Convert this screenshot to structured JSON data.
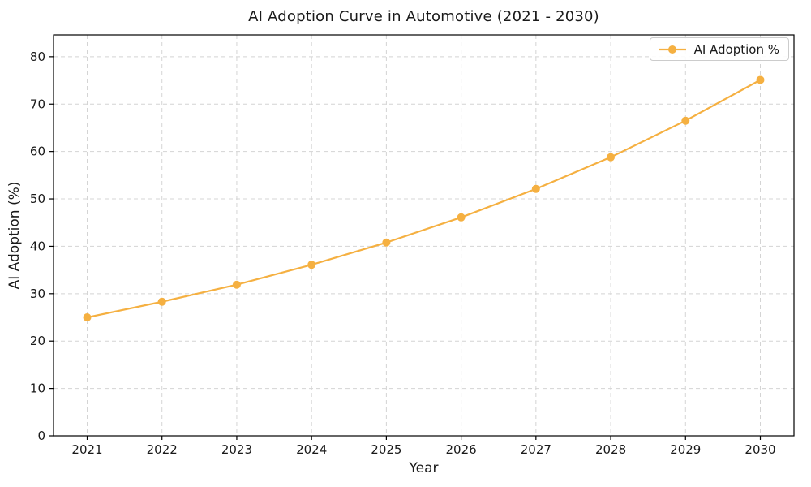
{
  "chart_data": {
    "type": "line",
    "title": "AI Adoption Curve in Automotive (2021 - 2030)",
    "xlabel": "Year",
    "ylabel": "AI Adoption (%)",
    "x": [
      2021,
      2022,
      2023,
      2024,
      2025,
      2026,
      2027,
      2028,
      2029,
      2030
    ],
    "series": [
      {
        "name": "AI Adoption %",
        "values": [
          25.0,
          28.3,
          31.9,
          36.1,
          40.8,
          46.1,
          52.1,
          58.8,
          66.5,
          75.1
        ],
        "color": "#F5B041"
      }
    ],
    "xlim": [
      2020.55,
      2030.45
    ],
    "ylim": [
      0,
      84.6
    ],
    "xticks": [
      2021,
      2022,
      2023,
      2024,
      2025,
      2026,
      2027,
      2028,
      2029,
      2030
    ],
    "yticks": [
      0,
      10,
      20,
      30,
      40,
      50,
      60,
      70,
      80
    ],
    "grid": {
      "show": true,
      "style": "dashed",
      "color": "#d4d4d4"
    },
    "legend": {
      "position": "upper right",
      "entries": [
        "AI Adoption %"
      ]
    },
    "axis_color": "#000000",
    "text_color": "#1a1a1a",
    "background": "#ffffff"
  }
}
